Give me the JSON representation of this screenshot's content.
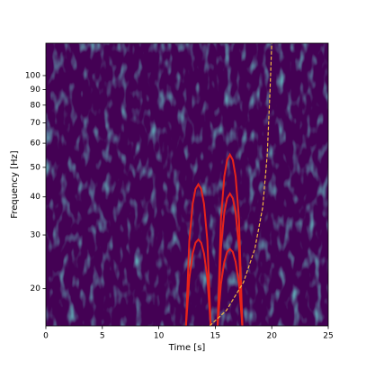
{
  "chart_data": {
    "type": "spectrogram",
    "xlabel": "Time [s]",
    "ylabel": "Frequency [Hz]",
    "xlim": [
      0,
      25
    ],
    "xticks": [
      0,
      5,
      10,
      15,
      20,
      25
    ],
    "ylim": [
      15.1,
      127.7
    ],
    "yscale": "log",
    "yticks": [
      20,
      30,
      40,
      50,
      60,
      70,
      80,
      90,
      100
    ],
    "background": "#440154",
    "series": [
      {
        "color": "#e8231a",
        "linestyle": "solid",
        "x": [
          12.4,
          12.7,
          13.0,
          13.25,
          13.5,
          13.75,
          14.0,
          14.3,
          14.6
        ],
        "values": [
          15,
          28.7,
          38,
          42.5,
          44,
          42.5,
          38,
          28.7,
          15
        ]
      },
      {
        "color": "#e8231a",
        "linestyle": "solid",
        "x": [
          12.4,
          12.7,
          13.0,
          13.25,
          13.5,
          13.75,
          14.0,
          14.3,
          14.6
        ],
        "values": [
          15,
          21.6,
          26.1,
          28.3,
          29,
          28.3,
          26.1,
          21.6,
          15
        ]
      },
      {
        "color": "#e8231a",
        "linestyle": "solid",
        "x": [
          15.2,
          15.5,
          15.8,
          16.05,
          16.3,
          16.55,
          16.8,
          17.1,
          17.4
        ],
        "values": [
          15,
          33.8,
          46.7,
          52.9,
          55,
          52.9,
          46.7,
          33.8,
          15
        ]
      },
      {
        "color": "#e8231a",
        "linestyle": "solid",
        "x": [
          15.2,
          15.5,
          15.8,
          16.05,
          16.3,
          16.55,
          16.8,
          17.1,
          17.4
        ],
        "values": [
          15,
          27.2,
          35.6,
          39.6,
          41,
          39.6,
          35.6,
          27.2,
          15
        ]
      },
      {
        "color": "#e8231a",
        "linestyle": "solid",
        "x": [
          15.2,
          15.5,
          15.8,
          16.05,
          16.3,
          16.55,
          16.8,
          17.1,
          17.4
        ],
        "values": [
          15,
          20.7,
          24.5,
          26.4,
          27,
          26.4,
          24.5,
          20.7,
          15
        ]
      },
      {
        "color": "#f5b942",
        "linestyle": "dashed",
        "x": [
          14.5,
          16.0,
          17.5,
          18.5,
          19.2,
          19.6,
          19.85,
          20.0
        ],
        "values": [
          15.1,
          17,
          21,
          27,
          37,
          55,
          90,
          127.7
        ]
      }
    ]
  }
}
